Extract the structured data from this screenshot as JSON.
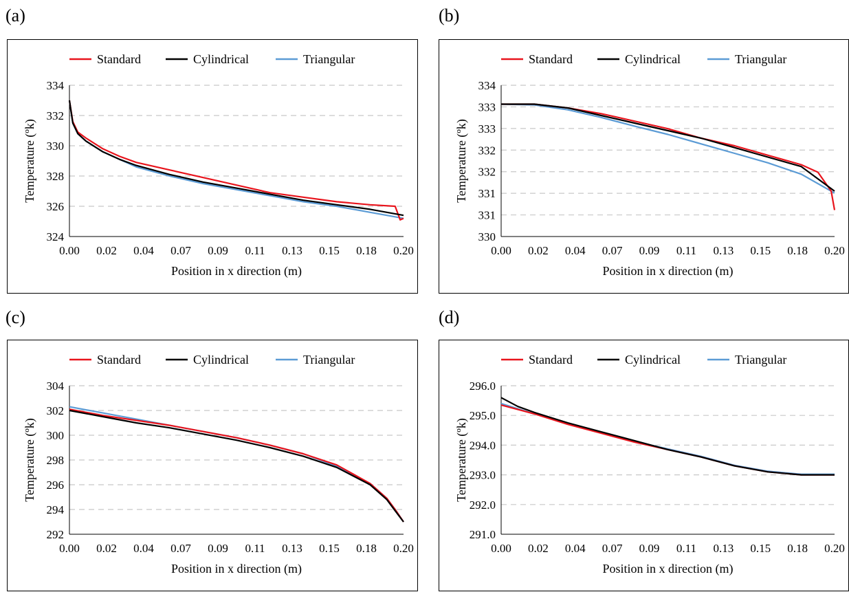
{
  "panels": [
    {
      "letter": "(a)"
    },
    {
      "letter": "(b)"
    },
    {
      "letter": "(c)"
    },
    {
      "letter": "(d)"
    }
  ],
  "colors": {
    "Standard": "#e8141c",
    "Cylindrical": "#000000",
    "Triangular": "#5b9bd5",
    "grid": "#c8c8c8"
  },
  "chart_data": [
    {
      "type": "line",
      "xlabel": "Position in x direction (m)",
      "ylabel": "Temperature (ºk)",
      "xlim": [
        0,
        0.2
      ],
      "ylim": [
        324,
        334
      ],
      "x_ticks": [
        "0.00",
        "0.02",
        "0.04",
        "0.07",
        "0.09",
        "0.11",
        "0.13",
        "0.15",
        "0.18",
        "0.20"
      ],
      "y_ticks": [
        "324",
        "326",
        "328",
        "330",
        "332",
        "334"
      ],
      "grid": true,
      "legend": "top",
      "series": [
        {
          "name": "Standard",
          "x": [
            0,
            0.002,
            0.005,
            0.01,
            0.02,
            0.03,
            0.04,
            0.06,
            0.08,
            0.1,
            0.12,
            0.14,
            0.16,
            0.18,
            0.195,
            0.198,
            0.2
          ],
          "y": [
            333.0,
            331.6,
            330.9,
            330.5,
            329.8,
            329.3,
            328.9,
            328.4,
            327.9,
            327.4,
            326.9,
            326.6,
            326.3,
            326.1,
            326.0,
            325.1,
            325.2
          ]
        },
        {
          "name": "Cylindrical",
          "x": [
            0,
            0.002,
            0.005,
            0.01,
            0.02,
            0.03,
            0.04,
            0.06,
            0.08,
            0.1,
            0.12,
            0.14,
            0.16,
            0.18,
            0.2
          ],
          "y": [
            333.0,
            331.5,
            330.8,
            330.3,
            329.6,
            329.1,
            328.7,
            328.1,
            327.6,
            327.2,
            326.8,
            326.4,
            326.1,
            325.8,
            325.4
          ]
        },
        {
          "name": "Triangular",
          "x": [
            0,
            0.002,
            0.005,
            0.01,
            0.02,
            0.03,
            0.04,
            0.06,
            0.08,
            0.1,
            0.12,
            0.14,
            0.16,
            0.18,
            0.2
          ],
          "y": [
            333.0,
            331.5,
            330.8,
            330.3,
            329.6,
            329.1,
            328.6,
            328.0,
            327.5,
            327.1,
            326.7,
            326.3,
            326.0,
            325.6,
            325.2
          ]
        }
      ]
    },
    {
      "type": "line",
      "xlabel": "Position in x direction (m)",
      "ylabel": "Temperature (ºk)",
      "xlim": [
        0,
        0.2
      ],
      "ylim": [
        330,
        334
      ],
      "x_ticks": [
        "0.00",
        "0.02",
        "0.04",
        "0.07",
        "0.09",
        "0.11",
        "0.13",
        "0.15",
        "0.18",
        "0.20"
      ],
      "y_ticks": [
        "330",
        "331",
        "331",
        "332",
        "332",
        "333",
        "333",
        "334"
      ],
      "grid": true,
      "legend": "top",
      "series": [
        {
          "name": "Standard",
          "x": [
            0,
            0.02,
            0.04,
            0.06,
            0.08,
            0.1,
            0.12,
            0.14,
            0.16,
            0.18,
            0.19,
            0.198,
            0.2
          ],
          "y": [
            333.5,
            333.5,
            333.4,
            333.25,
            333.05,
            332.85,
            332.6,
            332.4,
            332.15,
            331.9,
            331.7,
            331.2,
            330.7
          ]
        },
        {
          "name": "Cylindrical",
          "x": [
            0,
            0.02,
            0.04,
            0.06,
            0.08,
            0.1,
            0.12,
            0.14,
            0.16,
            0.18,
            0.2
          ],
          "y": [
            333.5,
            333.5,
            333.4,
            333.2,
            333.0,
            332.8,
            332.6,
            332.35,
            332.1,
            331.85,
            331.2
          ]
        },
        {
          "name": "Triangular",
          "x": [
            0,
            0.02,
            0.04,
            0.06,
            0.08,
            0.1,
            0.12,
            0.14,
            0.16,
            0.18,
            0.2
          ],
          "y": [
            333.5,
            333.48,
            333.35,
            333.15,
            332.92,
            332.7,
            332.45,
            332.2,
            331.95,
            331.65,
            331.15
          ]
        }
      ]
    },
    {
      "type": "line",
      "xlabel": "Position in x direction (m)",
      "ylabel": "Temperature (ºk)",
      "xlim": [
        0,
        0.2
      ],
      "ylim": [
        292,
        304
      ],
      "x_ticks": [
        "0.00",
        "0.02",
        "0.04",
        "0.07",
        "0.09",
        "0.11",
        "0.13",
        "0.15",
        "0.18",
        "0.20"
      ],
      "y_ticks": [
        "292",
        "294",
        "296",
        "298",
        "300",
        "302",
        "304"
      ],
      "grid": true,
      "legend": "top",
      "series": [
        {
          "name": "Standard",
          "x": [
            0,
            0.02,
            0.04,
            0.06,
            0.08,
            0.1,
            0.12,
            0.14,
            0.16,
            0.18,
            0.19,
            0.195,
            0.2
          ],
          "y": [
            302.1,
            301.6,
            301.2,
            300.8,
            300.3,
            299.8,
            299.2,
            298.5,
            297.6,
            296.1,
            294.9,
            294.0,
            293.0
          ]
        },
        {
          "name": "Cylindrical",
          "x": [
            0,
            0.02,
            0.04,
            0.06,
            0.08,
            0.1,
            0.12,
            0.14,
            0.16,
            0.18,
            0.19,
            0.195,
            0.2
          ],
          "y": [
            302.0,
            301.5,
            301.0,
            300.6,
            300.1,
            299.6,
            299.0,
            298.3,
            297.4,
            296.0,
            294.8,
            293.9,
            293.0
          ]
        },
        {
          "name": "Triangular",
          "x": [
            0,
            0.02,
            0.04,
            0.06,
            0.08,
            0.1,
            0.12,
            0.14,
            0.16,
            0.18,
            0.19,
            0.195,
            0.2
          ],
          "y": [
            302.3,
            301.8,
            301.3,
            300.8,
            300.3,
            299.8,
            299.2,
            298.5,
            297.5,
            296.1,
            294.9,
            294.0,
            293.0
          ]
        }
      ]
    },
    {
      "type": "line",
      "xlabel": "Position in x direction (m)",
      "ylabel": "Temperature (ºk)",
      "xlim": [
        0,
        0.2
      ],
      "ylim": [
        291,
        296
      ],
      "x_ticks": [
        "0.00",
        "0.02",
        "0.04",
        "0.07",
        "0.09",
        "0.11",
        "0.13",
        "0.15",
        "0.18",
        "0.20"
      ],
      "y_ticks": [
        "291.0",
        "292.0",
        "293.0",
        "294.0",
        "295.0",
        "296.0"
      ],
      "grid": true,
      "legend": "top",
      "series": [
        {
          "name": "Standard",
          "x": [
            0,
            0.02,
            0.04,
            0.06,
            0.08,
            0.1,
            0.12,
            0.14,
            0.16,
            0.18,
            0.2
          ],
          "y": [
            295.35,
            295.05,
            294.7,
            294.4,
            294.1,
            293.85,
            293.6,
            293.3,
            293.1,
            293.0,
            293.0
          ]
        },
        {
          "name": "Cylindrical",
          "x": [
            0,
            0.01,
            0.02,
            0.04,
            0.06,
            0.08,
            0.1,
            0.12,
            0.14,
            0.16,
            0.18,
            0.2
          ],
          "y": [
            295.6,
            295.3,
            295.1,
            294.75,
            294.45,
            294.15,
            293.85,
            293.6,
            293.3,
            293.1,
            293.0,
            293.0
          ]
        },
        {
          "name": "Triangular",
          "x": [
            0,
            0.02,
            0.04,
            0.06,
            0.08,
            0.1,
            0.12,
            0.14,
            0.16,
            0.18,
            0.2
          ],
          "y": [
            295.4,
            295.05,
            294.72,
            294.42,
            294.12,
            293.87,
            293.62,
            293.32,
            293.12,
            293.02,
            293.02
          ]
        }
      ]
    }
  ]
}
